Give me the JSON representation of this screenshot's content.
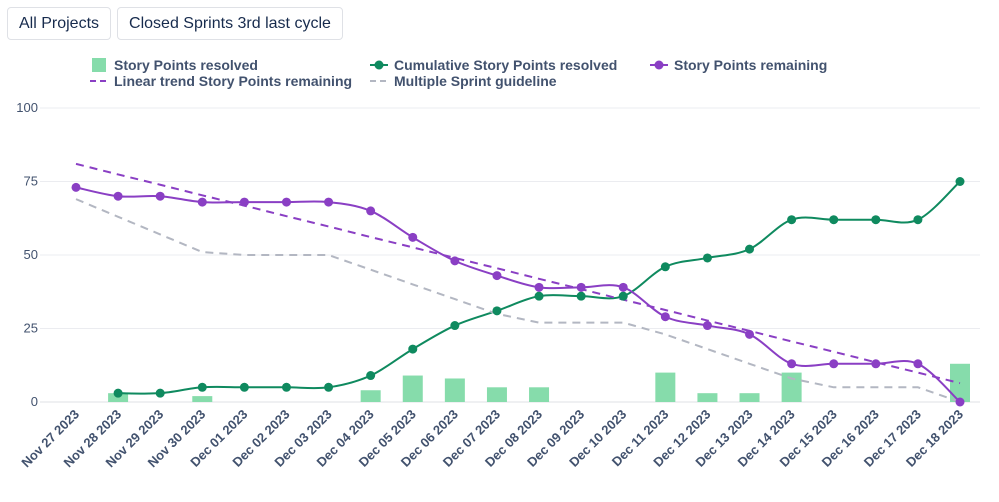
{
  "toolbar": {
    "projects_label": "All Projects",
    "sprints_label": "Closed Sprints 3rd last cycle"
  },
  "chart_data": {
    "type": "line",
    "title": "",
    "xlabel": "",
    "ylabel": "",
    "ylim": [
      0,
      100
    ],
    "yticks": [
      "0",
      "25",
      "50",
      "75",
      "100"
    ],
    "grid": true,
    "legend_position": "top",
    "categories": [
      "Nov 27 2023",
      "Nov 28 2023",
      "Nov 29 2023",
      "Nov 30 2023",
      "Dec 01 2023",
      "Dec 02 2023",
      "Dec 03 2023",
      "Dec 04 2023",
      "Dec 05 2023",
      "Dec 06 2023",
      "Dec 07 2023",
      "Dec 08 2023",
      "Dec 09 2023",
      "Dec 10 2023",
      "Dec 11 2023",
      "Dec 12 2023",
      "Dec 13 2023",
      "Dec 14 2023",
      "Dec 15 2023",
      "Dec 16 2023",
      "Dec 17 2023",
      "Dec 18 2023"
    ],
    "series": [
      {
        "name": "Story Points resolved",
        "kind": "bar",
        "color": "#86dcab",
        "values": [
          0,
          3,
          0,
          2,
          0,
          0,
          0,
          4,
          9,
          8,
          5,
          5,
          0,
          0,
          10,
          3,
          3,
          10,
          0,
          0,
          0,
          13
        ]
      },
      {
        "name": "Cumulative Story Points resolved",
        "kind": "line-markers",
        "color": "#0f8a5f",
        "values": [
          null,
          3,
          3,
          5,
          5,
          5,
          5,
          9,
          18,
          26,
          31,
          36,
          36,
          36,
          46,
          49,
          52,
          62,
          62,
          62,
          62,
          75
        ]
      },
      {
        "name": "Story Points remaining",
        "kind": "line-markers",
        "color": "#8a3fc4",
        "values": [
          73,
          70,
          70,
          68,
          68,
          68,
          68,
          65,
          56,
          48,
          43,
          39,
          39,
          39,
          29,
          26,
          23,
          13,
          13,
          13,
          13,
          0
        ]
      },
      {
        "name": "Linear trend Story Points remaining",
        "kind": "dashed",
        "color": "#8a3fc4",
        "values": [
          81,
          77.4,
          73.9,
          70.3,
          66.8,
          63.2,
          59.7,
          56.1,
          52.6,
          49.0,
          45.5,
          41.9,
          38.4,
          34.8,
          31.3,
          27.7,
          24.2,
          20.6,
          17.1,
          13.5,
          10.0,
          6.4
        ]
      },
      {
        "name": "Multiple Sprint guideline",
        "kind": "dashed",
        "color": "#b3b7c2",
        "values": [
          69,
          63,
          57,
          51,
          50,
          50,
          50,
          45,
          40,
          35,
          30,
          27,
          27,
          27,
          23,
          18,
          13,
          8,
          5,
          5,
          5,
          0
        ]
      }
    ]
  }
}
